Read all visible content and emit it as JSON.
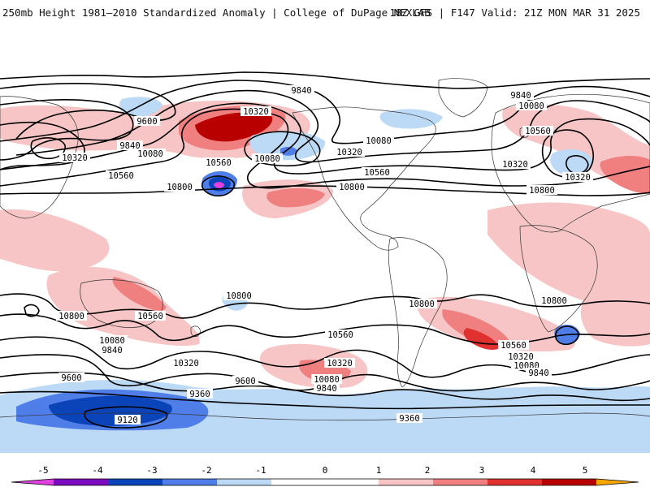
{
  "header": {
    "title": "250mb Height 1981–2010 Standardized Anomaly | College of DuPage NEXLAB",
    "run_info": "18Z GFS | F147 Valid: 21Z MON MAR 31 2025"
  },
  "colors": {
    "anom_neg5": "#e040e0",
    "anom_neg4": "#7a0bbf",
    "anom_neg3": "#0b43b8",
    "anom_neg2": "#4f7ee8",
    "anom_neg1": "#bcd9f5",
    "anom_pos1": "#f7c5c5",
    "anom_pos2": "#f08080",
    "anom_pos3": "#e03030",
    "anom_pos4": "#b80000",
    "anom_pos5": "#f7a800",
    "contour": "#000000",
    "coastline": "#333333"
  },
  "contour_labels": [
    "9840",
    "10320",
    "9600",
    "9840",
    "10080",
    "10320",
    "10560",
    "10800",
    "10560",
    "10080",
    "10320",
    "10080",
    "10560",
    "10800",
    "9840",
    "10080",
    "10560",
    "10320",
    "10800",
    "10320",
    "10800",
    "10560",
    "10800",
    "10080",
    "9840",
    "10320",
    "9600",
    "9360",
    "9120",
    "10560",
    "10320",
    "10080",
    "9840",
    "9600",
    "9360",
    "10800",
    "10800",
    "10560",
    "10320",
    "10080",
    "9840"
  ],
  "colorbar": {
    "ticks": [
      "-5",
      "-4",
      "-3",
      "-2",
      "-1",
      "0",
      "1",
      "2",
      "3",
      "4",
      "5"
    ]
  }
}
